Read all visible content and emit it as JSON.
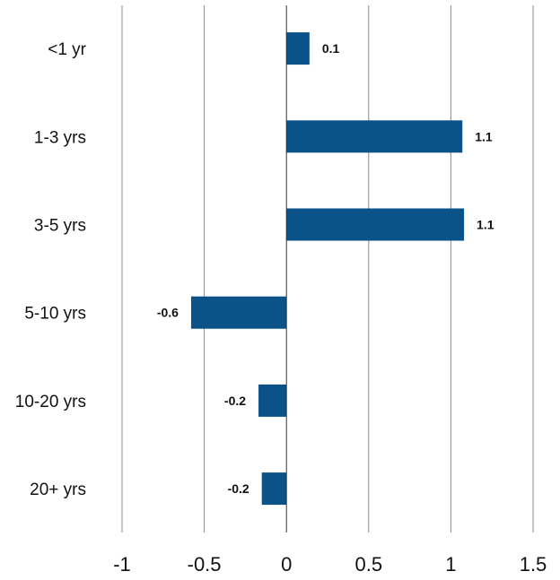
{
  "chart_data": {
    "type": "bar",
    "orientation": "horizontal",
    "title": "",
    "xlabel": "",
    "ylabel": "",
    "categories": [
      "<1 yr",
      "1-3 yrs",
      "3-5 yrs",
      "5-10 yrs",
      "10-20 yrs",
      "20+ yrs"
    ],
    "values": [
      0.14,
      1.07,
      1.08,
      -0.58,
      -0.17,
      -0.15
    ],
    "data_labels": [
      "0.1",
      "1.1",
      "1.1",
      "-0.6",
      "-0.2",
      "-0.2"
    ],
    "xlim": [
      -1,
      1.5
    ],
    "xticks": [
      -1,
      -0.5,
      0,
      0.5,
      1,
      1.5
    ],
    "xtick_labels": [
      "-1",
      "-0.5",
      "0",
      "0.5",
      "1",
      "1.5"
    ],
    "grid": "vertical",
    "legend": "none",
    "bar_color": "#0b5289"
  }
}
